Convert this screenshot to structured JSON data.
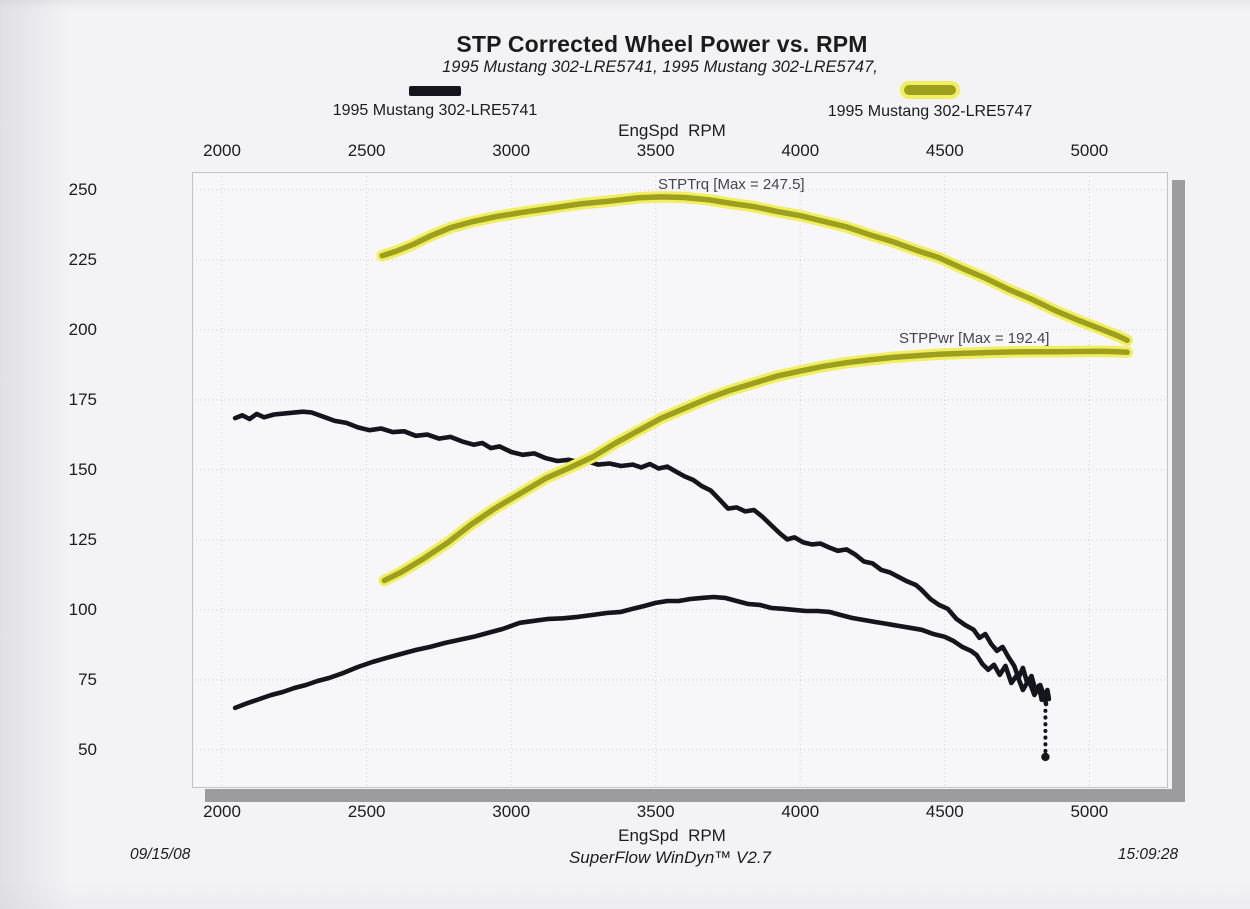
{
  "header": {
    "title": "STP Corrected Wheel Power vs. RPM",
    "subtitle": "1995 Mustang 302-LRE5741, 1995 Mustang 302-LRE5747,"
  },
  "legend": {
    "items": [
      {
        "label": "1995 Mustang 302-LRE5741",
        "color": "#15151d"
      },
      {
        "label": "1995 Mustang 302-LRE5747",
        "color_core": "#9ca01d",
        "color_halo": "#f2ee62"
      }
    ]
  },
  "footer": {
    "date": "09/15/08",
    "software": "SuperFlow WinDyn™ V2.7",
    "time": "15:09:28"
  },
  "colors": {
    "paper": "#f3f2f5",
    "plot_bg": "#f7f6f8",
    "plot_border": "#c6c4cc",
    "grid": "rgba(168,158,178,0.45)",
    "black_trace": "#15151d",
    "yellow_halo": "#f2ee62",
    "yellow_core": "#9ca01d",
    "shadow": "#9c9c9e"
  },
  "chart_data": {
    "type": "line",
    "title": "STP Corrected Wheel Power vs. RPM",
    "xlabel": "EngSpd  RPM",
    "ylabel": "",
    "xlabel_positions": [
      "top",
      "bottom"
    ],
    "x_ticks": [
      2000,
      2500,
      3000,
      3500,
      4000,
      4500,
      5000
    ],
    "y_ticks": [
      250,
      225,
      200,
      175,
      150,
      125,
      100,
      75,
      50
    ],
    "xlim": [
      1896,
      5272
    ],
    "ylim": [
      36.4,
      256.4
    ],
    "grid": "dotted",
    "legend_position": "above-plot",
    "annotations": [
      {
        "text": "STPTrq [Max = 247.5]",
        "series": "STPTrq 1995 Mustang 302-LRE5747"
      },
      {
        "text": "STPPwr [Max = 192.4]",
        "series": "STPPwr 1995 Mustang 302-LRE5747"
      }
    ],
    "series": [
      {
        "name": "STPTrq 1995 Mustang 302-LRE5747",
        "style": "yellow-highlighted",
        "max": 247.5,
        "points": [
          [
            2554,
            226.5
          ],
          [
            2600,
            228
          ],
          [
            2660,
            230.5
          ],
          [
            2720,
            233.5
          ],
          [
            2790,
            236.5
          ],
          [
            2860,
            238.5
          ],
          [
            2950,
            240.5
          ],
          [
            3040,
            242
          ],
          [
            3140,
            243.5
          ],
          [
            3240,
            245
          ],
          [
            3340,
            246
          ],
          [
            3440,
            247.2
          ],
          [
            3520,
            247.5
          ],
          [
            3600,
            247.3
          ],
          [
            3680,
            246.5
          ],
          [
            3760,
            245.2
          ],
          [
            3840,
            244
          ],
          [
            3920,
            242.3
          ],
          [
            4000,
            240.8
          ],
          [
            4080,
            238.8
          ],
          [
            4160,
            236.8
          ],
          [
            4240,
            234
          ],
          [
            4320,
            231.5
          ],
          [
            4400,
            228.5
          ],
          [
            4480,
            225.8
          ],
          [
            4560,
            222
          ],
          [
            4640,
            218.5
          ],
          [
            4720,
            214.5
          ],
          [
            4800,
            211
          ],
          [
            4880,
            207
          ],
          [
            4960,
            203.5
          ],
          [
            5040,
            200.3
          ],
          [
            5100,
            197.8
          ],
          [
            5131,
            196.3
          ]
        ]
      },
      {
        "name": "STPPwr 1995 Mustang 302-LRE5747",
        "style": "yellow-highlighted",
        "max": 192.4,
        "points": [
          [
            2561,
            110.5
          ],
          [
            2620,
            113.5
          ],
          [
            2700,
            118.5
          ],
          [
            2780,
            124
          ],
          [
            2860,
            130.4
          ],
          [
            2940,
            136
          ],
          [
            3030,
            141.5
          ],
          [
            3120,
            147
          ],
          [
            3200,
            150.7
          ],
          [
            3280,
            154.5
          ],
          [
            3360,
            159.5
          ],
          [
            3440,
            164
          ],
          [
            3520,
            168.5
          ],
          [
            3600,
            172
          ],
          [
            3680,
            175.5
          ],
          [
            3760,
            178.5
          ],
          [
            3840,
            181
          ],
          [
            3920,
            183.5
          ],
          [
            4000,
            185.3
          ],
          [
            4080,
            187
          ],
          [
            4160,
            188.3
          ],
          [
            4240,
            189.3
          ],
          [
            4320,
            190.2
          ],
          [
            4400,
            190.8
          ],
          [
            4480,
            191.3
          ],
          [
            4560,
            191.6
          ],
          [
            4640,
            191.9
          ],
          [
            4720,
            192.1
          ],
          [
            4800,
            192.2
          ],
          [
            4880,
            192.2
          ],
          [
            4960,
            192.3
          ],
          [
            5040,
            192.4
          ],
          [
            5100,
            192.2
          ],
          [
            5131,
            192.0
          ]
        ]
      },
      {
        "name": "STPTrq 1995 Mustang 302-LRE5741",
        "style": "black",
        "points": [
          [
            2045,
            168.5
          ],
          [
            2070,
            169.5
          ],
          [
            2095,
            168.2
          ],
          [
            2120,
            170
          ],
          [
            2145,
            168.8
          ],
          [
            2180,
            169.8
          ],
          [
            2230,
            170.3
          ],
          [
            2280,
            170.8
          ],
          [
            2310,
            170.5
          ],
          [
            2350,
            169
          ],
          [
            2390,
            167.5
          ],
          [
            2430,
            166.8
          ],
          [
            2470,
            165.2
          ],
          [
            2510,
            164.2
          ],
          [
            2550,
            164.8
          ],
          [
            2590,
            163.5
          ],
          [
            2630,
            163.8
          ],
          [
            2670,
            162.2
          ],
          [
            2710,
            162.6
          ],
          [
            2750,
            161.2
          ],
          [
            2790,
            161.8
          ],
          [
            2830,
            160.2
          ],
          [
            2870,
            159
          ],
          [
            2900,
            159.6
          ],
          [
            2930,
            157.8
          ],
          [
            2960,
            158.4
          ],
          [
            3000,
            156.4
          ],
          [
            3040,
            155.4
          ],
          [
            3080,
            155.9
          ],
          [
            3120,
            154.2
          ],
          [
            3160,
            153.2
          ],
          [
            3200,
            153.6
          ],
          [
            3240,
            152.6
          ],
          [
            3270,
            152.9
          ],
          [
            3300,
            151.9
          ],
          [
            3340,
            152.3
          ],
          [
            3380,
            151.4
          ],
          [
            3420,
            151.9
          ],
          [
            3450,
            150.9
          ],
          [
            3480,
            152.1
          ],
          [
            3510,
            150.5
          ],
          [
            3540,
            151.2
          ],
          [
            3570,
            149.4
          ],
          [
            3600,
            147.7
          ],
          [
            3630,
            146.4
          ],
          [
            3660,
            144.2
          ],
          [
            3690,
            142.7
          ],
          [
            3720,
            139.5
          ],
          [
            3750,
            136.2
          ],
          [
            3780,
            136.6
          ],
          [
            3810,
            135.2
          ],
          [
            3840,
            135.7
          ],
          [
            3870,
            133.2
          ],
          [
            3900,
            130.2
          ],
          [
            3930,
            127.3
          ],
          [
            3955,
            125.2
          ],
          [
            3980,
            125.9
          ],
          [
            4010,
            124.1
          ],
          [
            4040,
            123.4
          ],
          [
            4070,
            123.7
          ],
          [
            4100,
            122.3
          ],
          [
            4130,
            121.1
          ],
          [
            4160,
            121.6
          ],
          [
            4190,
            119.8
          ],
          [
            4220,
            117.3
          ],
          [
            4250,
            116.6
          ],
          [
            4280,
            114.3
          ],
          [
            4310,
            113.4
          ],
          [
            4340,
            111.8
          ],
          [
            4370,
            110.2
          ],
          [
            4400,
            108.9
          ],
          [
            4420,
            107.1
          ],
          [
            4450,
            103.9
          ],
          [
            4480,
            101.8
          ],
          [
            4510,
            100.4
          ],
          [
            4540,
            96.8
          ],
          [
            4570,
            94.6
          ],
          [
            4600,
            92.9
          ],
          [
            4620,
            90
          ],
          [
            4640,
            91.4
          ],
          [
            4660,
            87.9
          ],
          [
            4680,
            85.4
          ],
          [
            4700,
            86.8
          ],
          [
            4720,
            83.2
          ],
          [
            4740,
            80
          ],
          [
            4755,
            75.7
          ],
          [
            4770,
            79.3
          ],
          [
            4785,
            73.9
          ],
          [
            4800,
            76.4
          ],
          [
            4815,
            70.7
          ],
          [
            4825,
            72.9
          ],
          [
            4835,
            67.9
          ],
          [
            4845,
            69.3
          ],
          [
            4850,
            66.4
          ]
        ]
      },
      {
        "name": "STPPwr 1995 Mustang 302-LRE5741",
        "style": "black",
        "points": [
          [
            2045,
            65
          ],
          [
            2090,
            66.8
          ],
          [
            2130,
            68.2
          ],
          [
            2170,
            69.6
          ],
          [
            2210,
            70.7
          ],
          [
            2250,
            72.1
          ],
          [
            2290,
            73.2
          ],
          [
            2330,
            74.6
          ],
          [
            2370,
            75.7
          ],
          [
            2420,
            77.5
          ],
          [
            2470,
            79.6
          ],
          [
            2520,
            81.4
          ],
          [
            2570,
            82.9
          ],
          [
            2620,
            84.3
          ],
          [
            2670,
            85.7
          ],
          [
            2720,
            86.8
          ],
          [
            2770,
            88.2
          ],
          [
            2820,
            89.3
          ],
          [
            2870,
            90.4
          ],
          [
            2920,
            91.8
          ],
          [
            2970,
            93.2
          ],
          [
            3030,
            95.4
          ],
          [
            3080,
            96.1
          ],
          [
            3130,
            96.8
          ],
          [
            3180,
            97
          ],
          [
            3230,
            97.5
          ],
          [
            3280,
            98.2
          ],
          [
            3330,
            98.9
          ],
          [
            3380,
            99.3
          ],
          [
            3420,
            100.4
          ],
          [
            3460,
            101.4
          ],
          [
            3500,
            102.5
          ],
          [
            3540,
            103.2
          ],
          [
            3580,
            103.2
          ],
          [
            3620,
            103.9
          ],
          [
            3660,
            104.3
          ],
          [
            3700,
            104.6
          ],
          [
            3740,
            104.3
          ],
          [
            3780,
            103.2
          ],
          [
            3820,
            102.1
          ],
          [
            3860,
            101.8
          ],
          [
            3900,
            100.7
          ],
          [
            3940,
            100.4
          ],
          [
            3980,
            100
          ],
          [
            4020,
            99.6
          ],
          [
            4060,
            99.6
          ],
          [
            4100,
            99.3
          ],
          [
            4140,
            98.2
          ],
          [
            4180,
            97.1
          ],
          [
            4220,
            96.4
          ],
          [
            4260,
            95.7
          ],
          [
            4300,
            95
          ],
          [
            4340,
            94.3
          ],
          [
            4380,
            93.6
          ],
          [
            4420,
            92.9
          ],
          [
            4460,
            91.4
          ],
          [
            4500,
            90.4
          ],
          [
            4530,
            88.9
          ],
          [
            4560,
            86.8
          ],
          [
            4590,
            85.4
          ],
          [
            4610,
            83.9
          ],
          [
            4630,
            80.7
          ],
          [
            4650,
            78.6
          ],
          [
            4670,
            80.4
          ],
          [
            4690,
            76.8
          ],
          [
            4710,
            80
          ],
          [
            4730,
            73.9
          ],
          [
            4750,
            76.8
          ],
          [
            4770,
            71.4
          ],
          [
            4790,
            75
          ],
          [
            4810,
            69.6
          ],
          [
            4830,
            73.2
          ],
          [
            4845,
            68.9
          ],
          [
            4855,
            71.4
          ],
          [
            4860,
            68.2
          ]
        ]
      }
    ],
    "end_drop": {
      "rpm": 4848,
      "from": 64,
      "to": 47.5,
      "style": "dotted",
      "series": "1995 Mustang 302-LRE5741"
    }
  }
}
